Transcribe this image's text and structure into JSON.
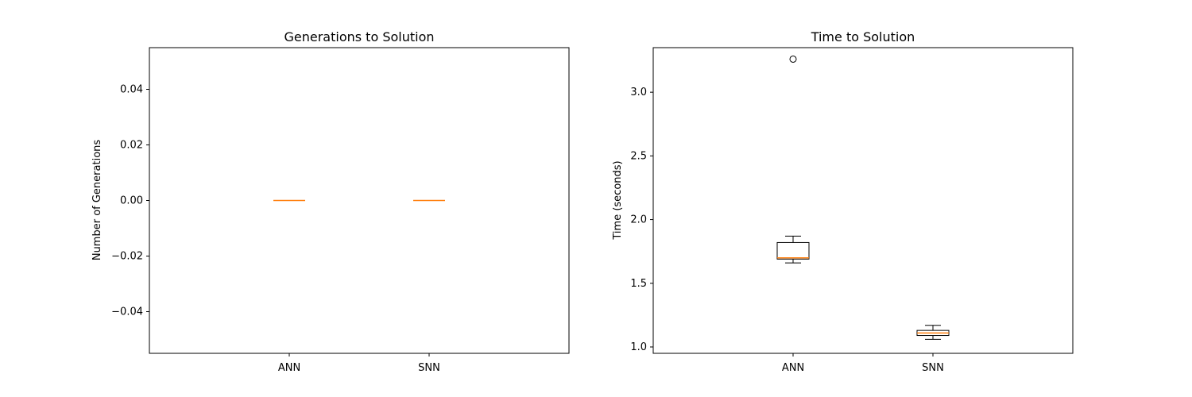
{
  "chart_data": [
    {
      "type": "box",
      "title": "Generations to Solution",
      "xlabel": "",
      "ylabel": "Number of Generations",
      "categories": [
        "ANN",
        "SNN"
      ],
      "ylim": [
        -0.055,
        0.055
      ],
      "yticks": [
        -0.04,
        -0.02,
        0.0,
        0.02,
        0.04
      ],
      "ytick_labels": [
        "−0.04",
        "−0.02",
        "0.00",
        "0.02",
        "0.04"
      ],
      "boxes": [
        {
          "name": "ANN",
          "whisker_low": 0,
          "q1": 0,
          "median": 0,
          "q3": 0,
          "whisker_high": 0,
          "outliers": []
        },
        {
          "name": "SNN",
          "whisker_low": 0,
          "q1": 0,
          "median": 0,
          "q3": 0,
          "whisker_high": 0,
          "outliers": []
        }
      ],
      "grid": false,
      "colors": {
        "box": "#000000",
        "median": "#ff7f0e"
      }
    },
    {
      "type": "box",
      "title": "Time to Solution",
      "xlabel": "",
      "ylabel": "Time (seconds)",
      "categories": [
        "ANN",
        "SNN"
      ],
      "ylim": [
        0.95,
        3.35
      ],
      "yticks": [
        1.0,
        1.5,
        2.0,
        2.5,
        3.0
      ],
      "ytick_labels": [
        "1.0",
        "1.5",
        "2.0",
        "2.5",
        "3.0"
      ],
      "boxes": [
        {
          "name": "ANN",
          "whisker_low": 1.66,
          "q1": 1.69,
          "median": 1.7,
          "q3": 1.82,
          "whisker_high": 1.87,
          "outliers": [
            3.26
          ]
        },
        {
          "name": "SNN",
          "whisker_low": 1.06,
          "q1": 1.09,
          "median": 1.11,
          "q3": 1.13,
          "whisker_high": 1.17,
          "outliers": []
        }
      ],
      "grid": false,
      "colors": {
        "box": "#000000",
        "median": "#ff7f0e"
      }
    }
  ]
}
